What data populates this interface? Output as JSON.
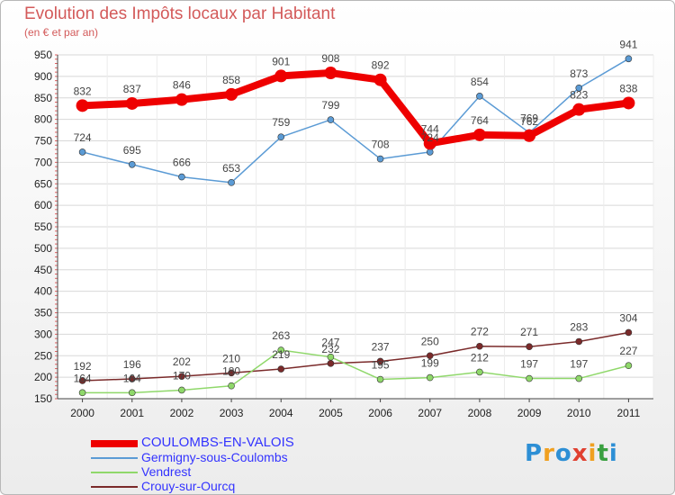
{
  "title": "Evolution des Impôts locaux par Habitant",
  "subtitle": "(en € et par an)",
  "logo": {
    "text": "Proxiti",
    "letters": [
      "P",
      "r",
      "o",
      "x",
      "i",
      "t",
      "i"
    ],
    "colors": [
      "#2d8fd5",
      "#f0a020",
      "#2d8fd5",
      "#e04030",
      "#f0a020",
      "#3aa040",
      "#2d8fd5"
    ]
  },
  "chart_data": {
    "type": "line",
    "title": "Evolution des Impôts locaux par Habitant",
    "subtitle": "(en € et par an)",
    "x": [
      "2000",
      "2001",
      "2002",
      "2003",
      "2004",
      "2005",
      "2006",
      "2007",
      "2008",
      "2009",
      "2010",
      "2011"
    ],
    "ylim": [
      150,
      950
    ],
    "yticks": [
      150,
      200,
      250,
      300,
      350,
      400,
      450,
      500,
      550,
      600,
      650,
      700,
      750,
      800,
      850,
      900,
      950
    ],
    "grid": true,
    "legend_position": "bottom-left",
    "series": [
      {
        "name": "COULOMBS-EN-VALOIS",
        "color": "#ee0000",
        "labelColor": "#3333ff",
        "values": [
          832,
          837,
          846,
          858,
          901,
          908,
          892,
          744,
          764,
          762,
          823,
          838
        ]
      },
      {
        "name": "Germigny-sous-Coulombs",
        "color": "#5b9bd5",
        "labelColor": "#3333ff",
        "values": [
          724,
          695,
          666,
          653,
          759,
          799,
          708,
          724,
          854,
          769,
          873,
          941
        ]
      },
      {
        "name": "Vendrest",
        "color": "#8fd86a",
        "labelColor": "#3333ff",
        "values": [
          164,
          164,
          170,
          180,
          263,
          247,
          195,
          199,
          212,
          197,
          197,
          227
        ]
      },
      {
        "name": "Crouy-sur-Ourcq",
        "color": "#7a2a2a",
        "labelColor": "#3333ff",
        "values": [
          192,
          196,
          202,
          210,
          219,
          232,
          237,
          250,
          272,
          271,
          283,
          304
        ]
      }
    ]
  }
}
